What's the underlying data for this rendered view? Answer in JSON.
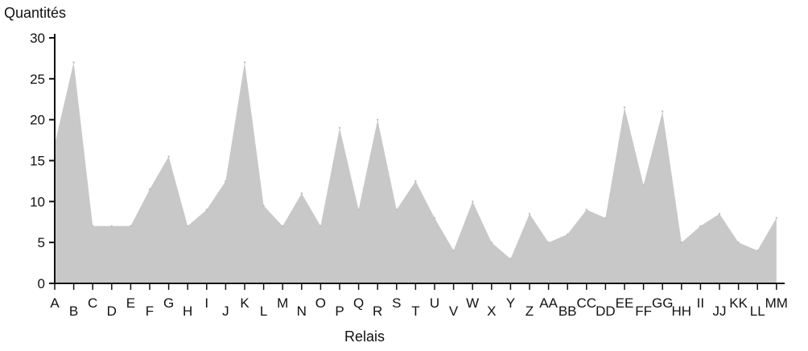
{
  "chart_data": {
    "type": "area",
    "title": "",
    "ylabel": "Quantités",
    "xlabel": "Relais",
    "ylim": [
      0,
      30
    ],
    "yticks": [
      0,
      5,
      10,
      15,
      20,
      25,
      30
    ],
    "grid": false,
    "legend": "none",
    "colors": {
      "fill": "#c8c8c8",
      "axis": "#111111"
    },
    "categories": [
      "A",
      "B",
      "C",
      "D",
      "E",
      "F",
      "G",
      "H",
      "I",
      "J",
      "K",
      "L",
      "M",
      "N",
      "O",
      "P",
      "Q",
      "R",
      "S",
      "T",
      "U",
      "V",
      "W",
      "X",
      "Y",
      "Z",
      "AA",
      "BB",
      "CC",
      "DD",
      "EE",
      "FF",
      "GG",
      "HH",
      "II",
      "JJ",
      "KK",
      "LL",
      "MM"
    ],
    "values": [
      17,
      27,
      7,
      7,
      7,
      11.5,
      15.5,
      7,
      9,
      12.5,
      27,
      9.5,
      7,
      11,
      7,
      19,
      9,
      20,
      9,
      12.5,
      8,
      4,
      10,
      5,
      3,
      8.5,
      5,
      6,
      9,
      8,
      21.5,
      12,
      21,
      5,
      7,
      8.5,
      5,
      4,
      8
    ]
  }
}
